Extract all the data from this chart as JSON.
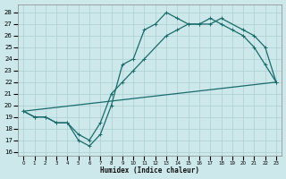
{
  "xlabel": "Humidex (Indice chaleur)",
  "bg_color": "#cce8ea",
  "grid_color": "#aacfd2",
  "line_color": "#1a6b6b",
  "xlim": [
    -0.5,
    23.5
  ],
  "ylim": [
    15.7,
    28.7
  ],
  "xticks": [
    0,
    1,
    2,
    3,
    4,
    5,
    6,
    7,
    8,
    9,
    10,
    11,
    12,
    13,
    14,
    15,
    16,
    17,
    18,
    19,
    20,
    21,
    22,
    23
  ],
  "yticks": [
    16,
    17,
    18,
    19,
    20,
    21,
    22,
    23,
    24,
    25,
    26,
    27,
    28
  ],
  "line1_x": [
    0,
    1,
    2,
    3,
    4,
    5,
    6,
    7,
    8,
    9,
    10,
    11,
    12,
    13,
    14,
    15,
    16,
    17,
    18,
    19,
    20,
    21,
    22,
    23
  ],
  "line1_y": [
    19.5,
    19.0,
    19.0,
    18.5,
    18.5,
    17.0,
    16.5,
    17.5,
    20.0,
    23.5,
    24.0,
    26.5,
    27.0,
    28.0,
    27.5,
    27.0,
    27.0,
    27.5,
    27.0,
    26.5,
    26.0,
    25.0,
    23.5,
    22.0
  ],
  "line2_x": [
    0,
    1,
    2,
    3,
    4,
    5,
    6,
    7,
    8,
    9,
    10,
    11,
    13,
    14,
    15,
    16,
    17,
    18,
    20,
    21,
    22,
    23
  ],
  "line2_y": [
    19.5,
    19.0,
    19.0,
    18.5,
    18.5,
    17.5,
    17.0,
    18.5,
    21.0,
    22.0,
    23.0,
    24.0,
    26.0,
    26.5,
    27.0,
    27.0,
    27.0,
    27.5,
    26.5,
    26.0,
    25.0,
    22.0
  ],
  "line3_x": [
    0,
    23
  ],
  "line3_y": [
    19.5,
    22.0
  ]
}
